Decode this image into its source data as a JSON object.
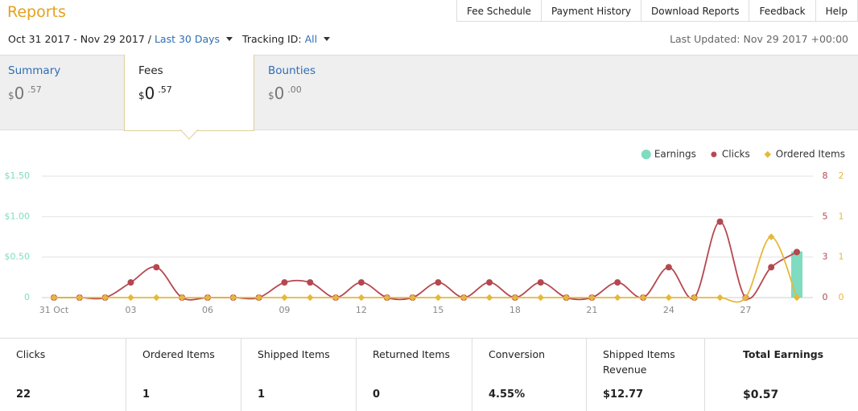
{
  "header": {
    "title": "Reports",
    "nav": [
      "Fee Schedule",
      "Payment History",
      "Download Reports",
      "Feedback",
      "Help"
    ]
  },
  "filters": {
    "date_range": "Oct 31 2017 - Nov 29 2017 /",
    "period": "Last 30 Days",
    "tracking_label": "Tracking ID:",
    "tracking_value": "All",
    "last_updated": "Last Updated: Nov 29 2017 +00:00"
  },
  "tabs": [
    {
      "name": "Summary",
      "currency": "$",
      "whole": "0",
      "fraction": ".57"
    },
    {
      "name": "Fees",
      "currency": "$",
      "whole": "0",
      "fraction": ".57"
    },
    {
      "name": "Bounties",
      "currency": "$",
      "whole": "0",
      "fraction": ".00"
    }
  ],
  "chart": {
    "type": "line",
    "categories": [
      "31 Oct",
      null,
      null,
      "03",
      null,
      null,
      "06",
      null,
      null,
      "09",
      null,
      null,
      "12",
      null,
      null,
      "15",
      null,
      null,
      "18",
      null,
      null,
      "21",
      null,
      null,
      "24",
      null,
      null,
      "27",
      null,
      null
    ],
    "ylim": [
      0,
      1.5
    ],
    "yticks": [
      0,
      {
        "value": 0.5,
        "label": "$0.50"
      },
      {
        "value": 1,
        "label": "$1.00"
      },
      {
        "value": 1.5,
        "label": "$1.50"
      }
    ],
    "y2lim": [
      0,
      8
    ],
    "y2ticks": [
      0,
      {
        "value": 2.667,
        "label": "3"
      },
      {
        "value": 5.333,
        "label": "5"
      },
      8
    ],
    "y3lim": [
      0,
      2
    ],
    "y3ticks": [
      0,
      {
        "value": 0.667,
        "label": "1"
      },
      {
        "value": 1.333,
        "label": "1"
      },
      2
    ],
    "grid": true,
    "legend": "top-right",
    "series": [
      {
        "name": "Earnings",
        "color": "#7fdcc0",
        "kind": "bar",
        "values": [
          0,
          0,
          0,
          0,
          0,
          0,
          0,
          0,
          0,
          0,
          0,
          0,
          0,
          0,
          0,
          0,
          0,
          0,
          0,
          0,
          0,
          0,
          0,
          0,
          0,
          0,
          0,
          0,
          0,
          0.57
        ]
      },
      {
        "name": "Clicks",
        "color": "#b5484f",
        "axis": "y2",
        "values": [
          0,
          0,
          0,
          1,
          2,
          0,
          0,
          0,
          0,
          1,
          1,
          0,
          1,
          0,
          0,
          1,
          0,
          1,
          0,
          1,
          0,
          0,
          1,
          0,
          2,
          0,
          5,
          0,
          2,
          3
        ]
      },
      {
        "name": "Ordered Items",
        "color": "#e6b83a",
        "axis": "y3",
        "values": [
          0,
          0,
          0,
          0,
          0,
          0,
          0,
          0,
          0,
          0,
          0,
          0,
          0,
          0,
          0,
          0,
          0,
          0,
          0,
          0,
          0,
          0,
          0,
          0,
          0,
          0,
          0,
          0,
          1,
          0
        ]
      }
    ]
  },
  "stats": [
    {
      "label": "Clicks",
      "value": "22"
    },
    {
      "label": "Ordered Items",
      "value": "1"
    },
    {
      "label": "Shipped Items",
      "value": "1"
    },
    {
      "label": "Returned Items",
      "value": "0"
    },
    {
      "label": "Conversion",
      "value": "4.55%"
    },
    {
      "label": "Shipped Items Revenue",
      "value": "$12.77"
    },
    {
      "label": "Total Earnings",
      "value": "$0.57"
    }
  ]
}
